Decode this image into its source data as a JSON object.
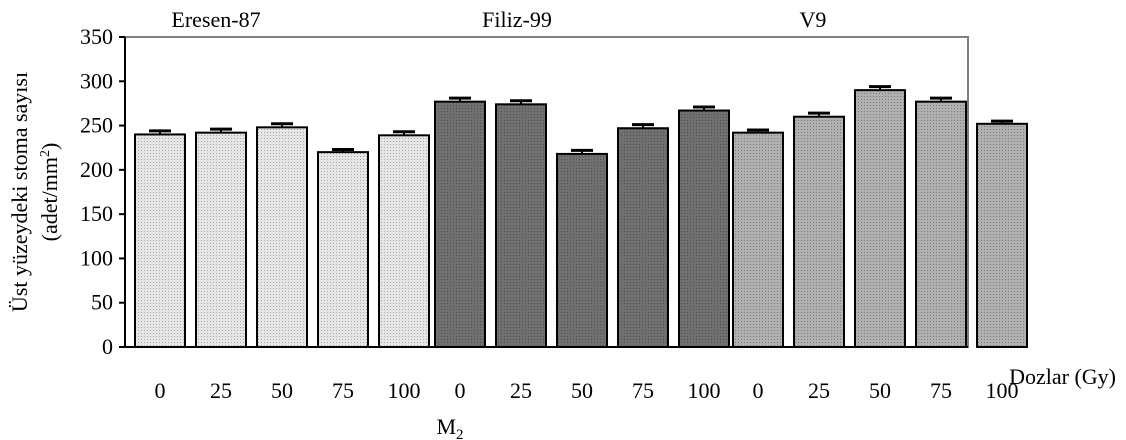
{
  "chart_data": {
    "type": "bar",
    "ylabel_line1": "Üst yüzeydeki stoma sayısı",
    "ylabel_line2_pre": "(adet/mm",
    "ylabel_line2_sup": "2",
    "ylabel_line2_post": ")",
    "xlabel_main": "M",
    "xlabel_sub": "2",
    "right_label": "Dozlar (Gy)",
    "ylim": [
      0,
      350
    ],
    "yticks": [
      0,
      50,
      100,
      150,
      200,
      250,
      300,
      350
    ],
    "grid": false,
    "groups": [
      {
        "name": "Eresen-87",
        "color": "#e6e6e6",
        "categories": [
          "0",
          "25",
          "50",
          "75",
          "100"
        ],
        "values": [
          240,
          242,
          248,
          220,
          239
        ],
        "errors": [
          4,
          4,
          4,
          3,
          4
        ]
      },
      {
        "name": "Filiz-99",
        "color": "#707070",
        "categories": [
          "0",
          "25",
          "50",
          "75",
          "100"
        ],
        "values": [
          277,
          274,
          218,
          247,
          267
        ],
        "errors": [
          4,
          4,
          4,
          4,
          4
        ]
      },
      {
        "name": "V9",
        "color": "#b0b0b0",
        "categories": [
          "0",
          "25",
          "50",
          "75",
          "100"
        ],
        "values": [
          242,
          260,
          290,
          277,
          252
        ],
        "errors": [
          3,
          4,
          4,
          4,
          3
        ]
      }
    ]
  }
}
